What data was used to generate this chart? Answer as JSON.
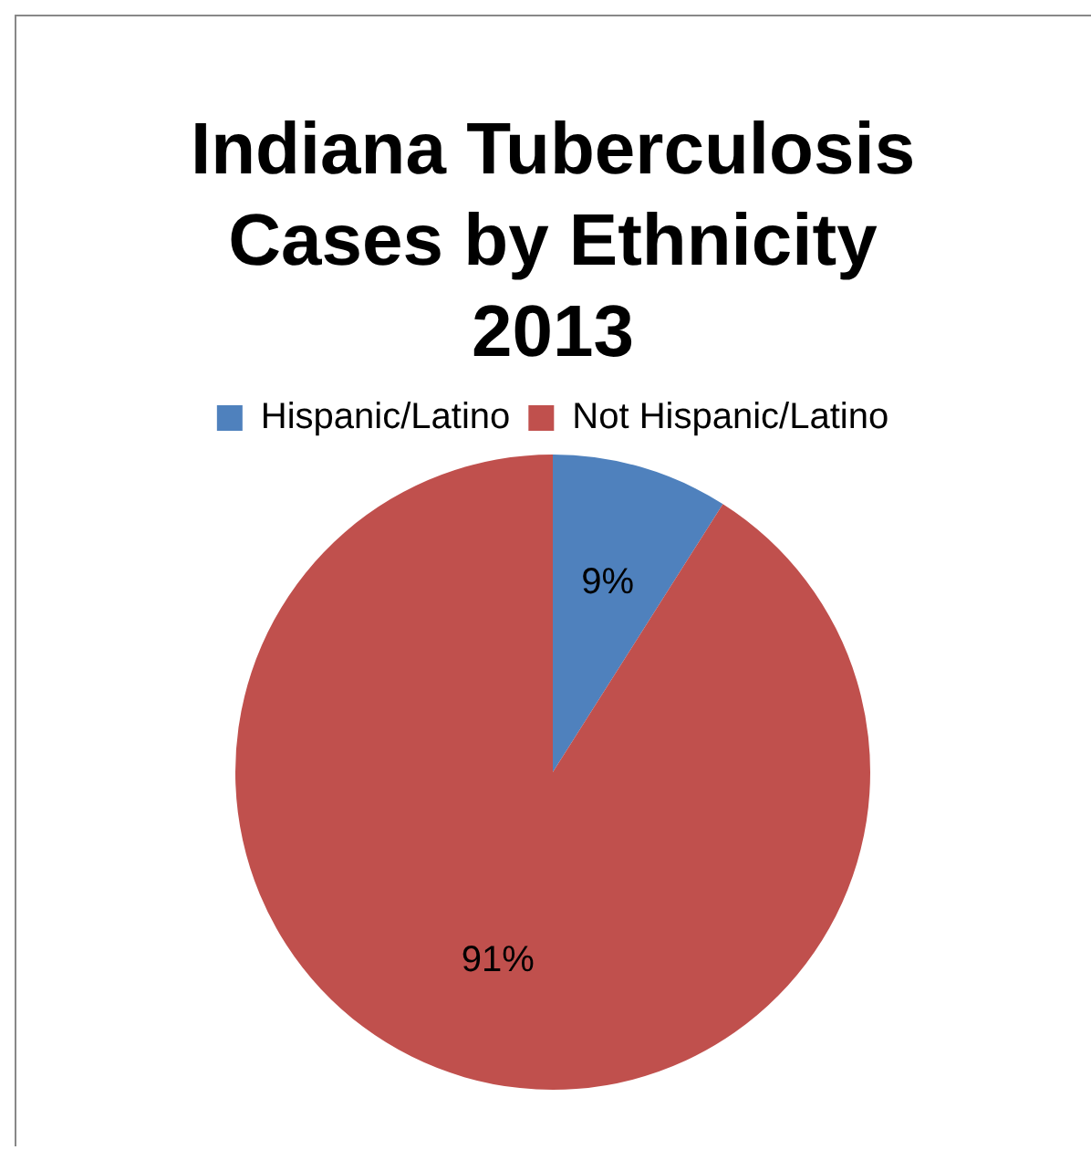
{
  "chart_data": {
    "type": "pie",
    "title": "Indiana Tuberculosis Cases by Ethnicity 2013",
    "categories": [
      "Hispanic/Latino",
      "Not Hispanic/Latino"
    ],
    "values": [
      9,
      91
    ],
    "colors": [
      "#4f81bd",
      "#c0504d"
    ],
    "value_labels": [
      "9%",
      "91%"
    ],
    "legend": "top"
  }
}
